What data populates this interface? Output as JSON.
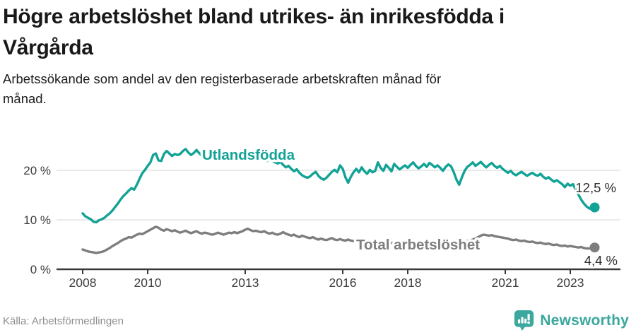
{
  "header": {
    "title": "Högre arbetslöshet bland utrikes- än inrikesfödda i\nVårgårda",
    "subtitle": "Arbetssökande som andel av den registerbaserade arbetskraften månad för\nmånad."
  },
  "footer": {
    "source": "Källa: Arbetsförmedlingen",
    "brand": "Newsworthy"
  },
  "colors": {
    "accent_teal": "#12A296",
    "line_gray": "#7E7E7E",
    "grid": "#DDDDDD",
    "axis": "#3A3A3A",
    "tick_text": "#3D3D3D",
    "annotation_text": "#2F2F2F",
    "source_text": "#8E8E8E",
    "brand_teal": "#3BA79E"
  },
  "chart_data": {
    "type": "line",
    "title": "Högre arbetslöshet bland utrikes- än inrikesfödda i Vårgårda",
    "xlabel": "",
    "ylabel": "",
    "x_start": {
      "year": 2008,
      "month": 1
    },
    "x_end": {
      "year": 2023,
      "month": 10
    },
    "x_ticks": [
      2008,
      2010,
      2013,
      2016,
      2018,
      2021,
      2023
    ],
    "y_ticks": [
      {
        "value": 0,
        "label": "0 %"
      },
      {
        "value": 10,
        "label": "10 %"
      },
      {
        "value": 20,
        "label": "20 %"
      }
    ],
    "ylim": [
      0,
      25
    ],
    "grid": "horizontal-only",
    "legend_position": "inline-labels",
    "series": [
      {
        "name": "Utlandsfödda",
        "color": "#12A296",
        "end_label": "12,5 %",
        "end_value": 12.5,
        "values": [
          11.3,
          10.7,
          10.4,
          10.1,
          9.6,
          9.5,
          9.9,
          10.1,
          10.4,
          10.9,
          11.3,
          11.9,
          12.6,
          13.3,
          14.1,
          14.8,
          15.3,
          15.9,
          16.4,
          16.1,
          17.1,
          18.3,
          19.4,
          20.1,
          20.9,
          21.6,
          23.1,
          23.4,
          22.0,
          21.9,
          23.3,
          23.9,
          23.4,
          22.9,
          23.3,
          23.1,
          23.3,
          23.9,
          24.3,
          23.6,
          23.1,
          23.5,
          24.1,
          23.5,
          22.9,
          23.4,
          23.7,
          23.2,
          23.0,
          23.5,
          23.9,
          24.2,
          23.6,
          23.1,
          23.4,
          23.8,
          23.2,
          22.9,
          23.2,
          23.5,
          23.6,
          23.1,
          22.6,
          23.1,
          23.4,
          22.9,
          22.4,
          22.0,
          21.9,
          22.3,
          21.9,
          21.6,
          21.4,
          21.7,
          21.1,
          20.6,
          20.9,
          20.3,
          19.8,
          20.2,
          19.5,
          19.0,
          18.7,
          18.5,
          18.8,
          19.3,
          19.7,
          18.9,
          18.4,
          18.1,
          18.5,
          19.1,
          19.7,
          20.1,
          19.6,
          21.0,
          20.3,
          18.6,
          17.5,
          18.7,
          19.6,
          20.3,
          19.6,
          20.6,
          19.8,
          19.3,
          20.1,
          19.6,
          19.9,
          21.6,
          20.5,
          19.9,
          21.1,
          20.5,
          19.8,
          21.3,
          20.7,
          20.2,
          20.6,
          21.0,
          20.5,
          21.1,
          21.6,
          20.9,
          20.4,
          20.8,
          21.3,
          20.7,
          21.5,
          21.1,
          20.6,
          21.0,
          20.5,
          19.9,
          20.7,
          21.2,
          20.8,
          19.6,
          18.1,
          17.1,
          18.6,
          19.9,
          20.7,
          21.1,
          21.6,
          20.9,
          21.3,
          21.7,
          21.1,
          20.6,
          21.1,
          21.5,
          20.9,
          20.5,
          20.9,
          20.3,
          19.9,
          19.5,
          19.9,
          19.3,
          19.0,
          19.4,
          19.7,
          19.3,
          18.9,
          19.2,
          19.5,
          19.1,
          18.9,
          19.3,
          18.7,
          18.3,
          18.6,
          18.1,
          17.7,
          18.0,
          17.6,
          17.2,
          16.6,
          17.3,
          16.9,
          17.2,
          16.1,
          15.1,
          14.1,
          13.3,
          12.7,
          12.3,
          12.2,
          12.5
        ]
      },
      {
        "name": "Total arbetslöshet",
        "color": "#7E7E7E",
        "end_label": "4,4 %",
        "end_value": 4.4,
        "values": [
          4.0,
          3.8,
          3.6,
          3.5,
          3.4,
          3.3,
          3.4,
          3.5,
          3.7,
          4.0,
          4.3,
          4.7,
          5.0,
          5.3,
          5.7,
          6.0,
          6.2,
          6.5,
          6.4,
          6.7,
          7.0,
          7.2,
          7.1,
          7.4,
          7.7,
          8.0,
          8.3,
          8.6,
          8.4,
          8.0,
          7.8,
          8.1,
          7.9,
          7.7,
          7.9,
          7.6,
          7.4,
          7.6,
          7.8,
          7.5,
          7.3,
          7.5,
          7.7,
          7.4,
          7.2,
          7.4,
          7.3,
          7.1,
          7.0,
          7.2,
          7.4,
          7.2,
          7.0,
          7.2,
          7.4,
          7.3,
          7.5,
          7.3,
          7.5,
          7.7,
          8.0,
          8.2,
          7.9,
          7.7,
          7.8,
          7.6,
          7.5,
          7.7,
          7.4,
          7.2,
          7.4,
          7.1,
          7.0,
          7.2,
          7.5,
          7.2,
          7.0,
          6.8,
          7.0,
          6.7,
          6.5,
          6.8,
          6.6,
          6.4,
          6.3,
          6.5,
          6.2,
          6.0,
          6.2,
          6.0,
          5.9,
          6.1,
          6.3,
          6.0,
          5.9,
          6.1,
          5.9,
          5.8,
          6.0,
          5.8,
          5.7,
          5.8,
          5.6,
          5.7,
          5.8,
          5.6,
          5.7,
          5.5,
          5.6,
          5.5,
          5.7,
          5.5,
          5.4,
          5.5,
          5.3,
          5.4,
          5.5,
          5.3,
          5.4,
          5.2,
          5.3,
          5.4,
          5.2,
          5.1,
          5.2,
          5.0,
          5.1,
          5.2,
          5.0,
          4.9,
          5.0,
          5.1,
          5.2,
          5.1,
          5.3,
          5.2,
          5.4,
          5.3,
          5.5,
          5.4,
          5.6,
          5.5,
          5.7,
          5.8,
          6.0,
          6.2,
          6.5,
          6.8,
          7.0,
          6.9,
          6.8,
          6.9,
          6.7,
          6.6,
          6.5,
          6.4,
          6.3,
          6.2,
          6.0,
          5.9,
          6.0,
          5.8,
          5.7,
          5.8,
          5.6,
          5.5,
          5.6,
          5.4,
          5.3,
          5.4,
          5.2,
          5.1,
          5.2,
          5.0,
          4.9,
          5.0,
          4.8,
          4.7,
          4.8,
          4.6,
          4.7,
          4.6,
          4.5,
          4.4,
          4.5,
          4.3,
          4.2,
          4.2,
          4.3,
          4.4
        ]
      }
    ]
  }
}
